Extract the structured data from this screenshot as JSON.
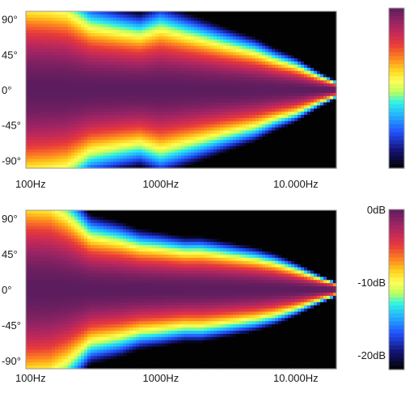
{
  "chart_data": [
    {
      "type": "heatmap",
      "title": "",
      "xlabel": "",
      "ylabel": "",
      "x_scale": "log",
      "xlim_hz": [
        100,
        20000
      ],
      "ylim_deg": [
        -100,
        100
      ],
      "x_ticks": [
        {
          "value": 100,
          "label": "100Hz"
        },
        {
          "value": 1000,
          "label": "1000Hz"
        },
        {
          "value": 10000,
          "label": "10.000Hz"
        }
      ],
      "y_ticks": [
        {
          "value": 90,
          "label": "90°"
        },
        {
          "value": 45,
          "label": "45°"
        },
        {
          "value": 0,
          "label": "0°"
        },
        {
          "value": -45,
          "label": "-45°"
        },
        {
          "value": -90,
          "label": "-90°"
        }
      ],
      "colorbar": {
        "ticks": []
      },
      "frequency_hz": [
        100,
        150,
        200,
        300,
        500,
        700,
        1000,
        1500,
        2000,
        3000,
        5000,
        7000,
        10000,
        15000,
        20000
      ],
      "beamwidth_6db_deg": [
        80,
        78,
        75,
        60,
        55,
        52,
        58,
        52,
        48,
        42,
        35,
        28,
        22,
        12,
        6
      ]
    },
    {
      "type": "heatmap",
      "title": "",
      "xlabel": "",
      "ylabel": "",
      "x_scale": "log",
      "xlim_hz": [
        100,
        20000
      ],
      "ylim_deg": [
        -100,
        100
      ],
      "x_ticks": [
        {
          "value": 100,
          "label": "100Hz"
        },
        {
          "value": 1000,
          "label": "1000Hz"
        },
        {
          "value": 10000,
          "label": "10.000Hz"
        }
      ],
      "y_ticks": [
        {
          "value": 90,
          "label": "90°"
        },
        {
          "value": 45,
          "label": "45°"
        },
        {
          "value": 0,
          "label": "0°"
        },
        {
          "value": -45,
          "label": "-45°"
        },
        {
          "value": -90,
          "label": "-90°"
        }
      ],
      "colorbar": {
        "ticks": [
          {
            "value": 0,
            "label": "0dB"
          },
          {
            "value": -10,
            "label": "-10dB"
          },
          {
            "value": -20,
            "label": "-20dB"
          }
        ]
      },
      "frequency_hz": [
        100,
        150,
        200,
        300,
        500,
        700,
        1000,
        1500,
        2000,
        3000,
        5000,
        7000,
        10000,
        15000,
        20000
      ],
      "beamwidth_6db_deg": [
        82,
        80,
        70,
        50,
        45,
        40,
        38,
        35,
        35,
        32,
        28,
        24,
        18,
        10,
        5
      ]
    }
  ],
  "colorscale": {
    "min_db": -22,
    "max_db": 0,
    "stops": [
      {
        "db": 0,
        "color": "#5c1d5e"
      },
      {
        "db": -2,
        "color": "#9b2464"
      },
      {
        "db": -3.5,
        "color": "#c62a57"
      },
      {
        "db": -5,
        "color": "#e83a3a"
      },
      {
        "db": -7,
        "color": "#ff8a1e"
      },
      {
        "db": -8.5,
        "color": "#ffd21e"
      },
      {
        "db": -10,
        "color": "#fffe56"
      },
      {
        "db": -11.5,
        "color": "#bfff5c"
      },
      {
        "db": -13,
        "color": "#2ff2e6"
      },
      {
        "db": -15,
        "color": "#22a8ff"
      },
      {
        "db": -17,
        "color": "#2252ff"
      },
      {
        "db": -19.5,
        "color": "#141478"
      },
      {
        "db": -22,
        "color": "#020202"
      }
    ]
  }
}
